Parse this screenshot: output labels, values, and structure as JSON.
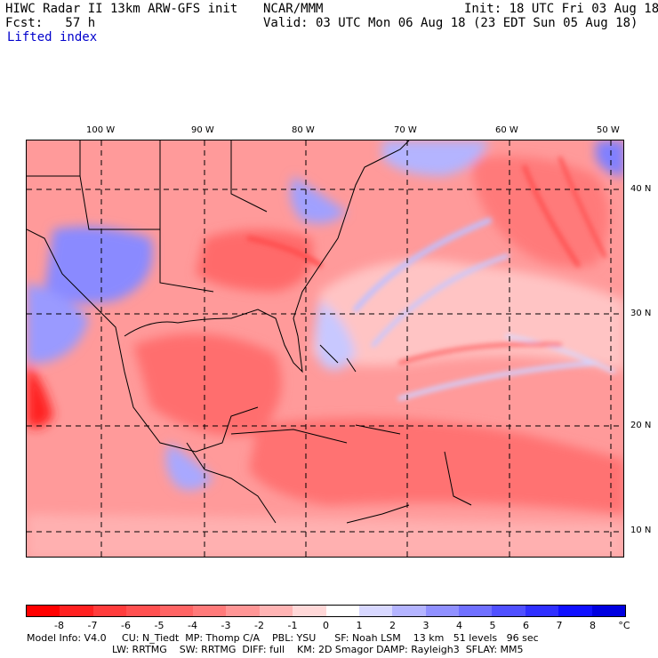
{
  "header": {
    "model": "HIWC Radar II 13km ARW-GFS init",
    "org": "NCAR/MMM",
    "init": "Init: 18 UTC Fri 03 Aug 18",
    "fcst": "Fcst:   57 h",
    "valid": "Valid: 03 UTC Mon 06 Aug 18 (23 EDT Sun 05 Aug 18)",
    "field": "Lifted index"
  },
  "axes": {
    "lon_labels": [
      "100 W",
      "90 W",
      "80 W",
      "70 W",
      "60 W",
      "50 W"
    ],
    "lat_labels": [
      "40 N",
      "30 N",
      "20 N",
      "10 N"
    ]
  },
  "colorbar": {
    "labels": [
      "-8",
      "-7",
      "-6",
      "-5",
      "-4",
      "-3",
      "-2",
      "-1",
      "0",
      "1",
      "2",
      "3",
      "4",
      "5",
      "6",
      "7",
      "8"
    ],
    "unit": "°C",
    "colors": [
      "#ff0000",
      "#ff2020",
      "#ff3c3c",
      "#ff5050",
      "#ff6464",
      "#ff7a7a",
      "#ff9696",
      "#ffb4b4",
      "#ffd8d8",
      "#ffffff",
      "#d8d8ff",
      "#b4b4ff",
      "#9090ff",
      "#7070ff",
      "#5050ff",
      "#3030ff",
      "#1010ff",
      "#0000e0"
    ]
  },
  "footer": {
    "line1": "Model Info: V4.0     CU: N_Tiedt  MP: Thomp C/A    PBL: YSU      SF: Noah LSM    13 km   51 levels   96 sec",
    "line2": "LW: RRTMG    SW: RRTMG  DIFF: full    KM: 2D Smagor DAMP: Rayleigh3  SFLAY: MM5"
  }
}
